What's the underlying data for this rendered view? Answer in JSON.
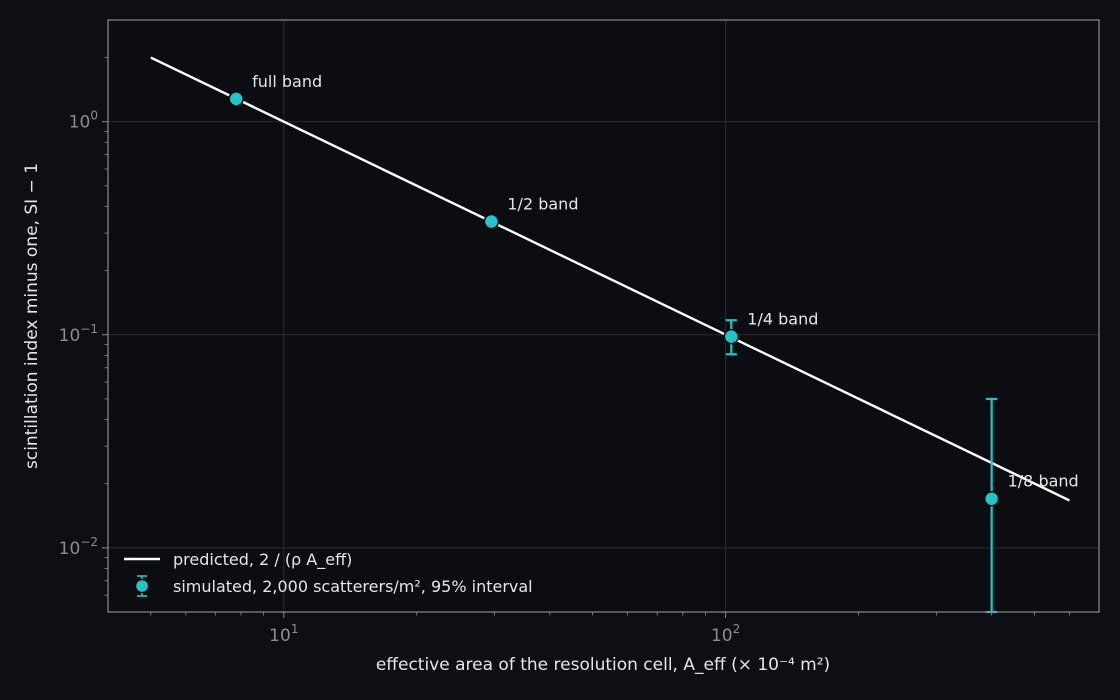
{
  "chart_data": {
    "type": "scatter",
    "xscale": "log",
    "yscale": "log",
    "xlim": [
      4,
      700
    ],
    "ylim": [
      0.005,
      3
    ],
    "xlabel": "effective area of the resolution cell, A_eff (× 10⁻⁴ m²)",
    "ylabel": "scintillation index minus one, SI − 1",
    "grid": true,
    "legend_location": "lower-left",
    "x_ticks": [
      {
        "value": 10,
        "base": "10",
        "exp": "1"
      },
      {
        "value": 100,
        "base": "10",
        "exp": "2"
      }
    ],
    "y_ticks": [
      {
        "value": 1,
        "base": "10",
        "exp": "0"
      },
      {
        "value": 0.1,
        "base": "10",
        "exp": "−1"
      },
      {
        "value": 0.01,
        "base": "10",
        "exp": "−2"
      }
    ],
    "series": [
      {
        "name": "predicted, 2 / (ρ A_eff)",
        "kind": "line",
        "color": "#ffffff",
        "x": [
          5,
          600
        ],
        "y": [
          2.0,
          0.0167
        ]
      },
      {
        "name": "simulated, 2,000 scatterers/m², 95% interval",
        "kind": "scatter-errorbar",
        "color": "#1ec8c8",
        "points": [
          {
            "x": 7.8,
            "y": 1.28,
            "y_lo": 1.28,
            "y_hi": 1.28,
            "label": "full band"
          },
          {
            "x": 29.5,
            "y": 0.34,
            "y_lo": 0.34,
            "y_hi": 0.34,
            "label": "1/2 band"
          },
          {
            "x": 103,
            "y": 0.098,
            "y_lo": 0.081,
            "y_hi": 0.117,
            "label": "1/4 band"
          },
          {
            "x": 400,
            "y": 0.017,
            "y_lo": 0.005,
            "y_hi": 0.05,
            "label": "1/8 band"
          }
        ]
      }
    ]
  }
}
